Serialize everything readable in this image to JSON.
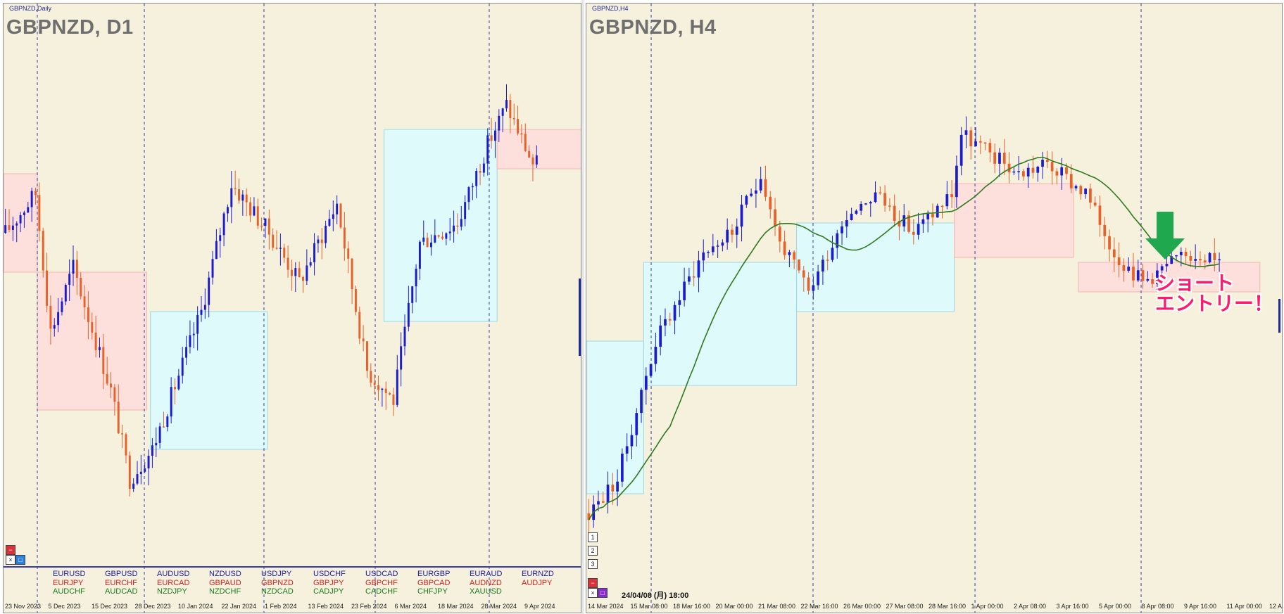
{
  "left": {
    "mini_title": "GBPNZD,Daily",
    "title": "GBPNZD, D1",
    "dates": [
      "23 Nov 2023",
      "5 Dec 2023",
      "15 Dec 2023",
      "28 Dec 2023",
      "10 Jan 2024",
      "22 Jan 2024",
      "1 Feb 2024",
      "13 Feb 2024",
      "23 Feb 2024",
      "6 Mar 2024",
      "18 Mar 2024",
      "28 Mar 2024",
      "9 Apr 2024"
    ],
    "symbols": [
      [
        "EURUSD",
        "EURJPY",
        "AUDCHF"
      ],
      [
        "GBPUSD",
        "EURCHF",
        "AUDCAD"
      ],
      [
        "AUDUSD",
        "EURCAD",
        "NZDJPY"
      ],
      [
        "NZDUSD",
        "GBPAUD",
        "NZDCHF"
      ],
      [
        "USDJPY",
        "GBPNZD",
        "NZDCAD"
      ],
      [
        "USDCHF",
        "GBPJPY",
        "CADJPY"
      ],
      [
        "USDCAD",
        "GBPCHF",
        "CADCHF"
      ],
      [
        "EURGBP",
        "GBPCAD",
        "CHFJPY"
      ],
      [
        "EURAUD",
        "AUDNZD",
        "XAUUSD"
      ],
      [
        "EURNZD",
        "AUDJPY",
        ""
      ]
    ],
    "symbol_colors": [
      "#1a1aa6",
      "#d02020",
      "#1e7a1e"
    ]
  },
  "right": {
    "mini_title": "GBPNZD,H4",
    "title": "GBPNZD, H4",
    "dates": [
      "14 Mar 2024",
      "15 Mar 08:00",
      "18 Mar 16:00",
      "20 Mar 00:00",
      "21 Mar 08:00",
      "22 Mar 16:00",
      "26 Mar 00:00",
      "27 Mar 08:00",
      "28 Mar 16:00",
      "1 Apr 00:00",
      "2 Apr 08:00",
      "3 Apr 16:00",
      "5 Apr 00:00",
      "8 Apr 08:00",
      "9 Apr 16:00",
      "11 Apr 00:00",
      "12 A"
    ],
    "timestamp": "24/04/08 (月) 18:00",
    "side_buttons": [
      "1",
      "2",
      "3"
    ],
    "annotation": [
      "ショート",
      "エントリー！"
    ]
  },
  "colors": {
    "background": "#f5f1dc",
    "bull": "#1c1ccf",
    "bear": "#e8602a",
    "zone_blue": "#dffafa",
    "zone_pink": "#fde0dc",
    "ma": "#2e7a1e",
    "arrow": "#1fa84e",
    "annotation": "#ff1a6b"
  },
  "chart_data": [
    {
      "type": "candlestick",
      "title": "GBPNZD, D1",
      "x": [
        "23 Nov 2023",
        "5 Dec 2023",
        "15 Dec 2023",
        "28 Dec 2023",
        "10 Jan 2024",
        "22 Jan 2024",
        "1 Feb 2024",
        "13 Feb 2024",
        "23 Feb 2024",
        "6 Mar 2024",
        "18 Mar 2024",
        "28 Mar 2024",
        "9 Apr 2024"
      ],
      "price_range": [
        0,
        100
      ],
      "zones": [
        {
          "kind": "sell",
          "from": 0,
          "to": 8,
          "top": 74,
          "bottom": 54
        },
        {
          "kind": "sell",
          "from": 9,
          "to": 37,
          "top": 54,
          "bottom": 26
        },
        {
          "kind": "buy",
          "from": 39,
          "to": 69,
          "top": 46,
          "bottom": 18
        },
        {
          "kind": "buy",
          "from": 101,
          "to": 130,
          "top": 83,
          "bottom": 44
        },
        {
          "kind": "sell",
          "from": 131,
          "to": 156,
          "top": 83,
          "bottom": 75
        }
      ]
    },
    {
      "type": "candlestick",
      "title": "GBPNZD, H4",
      "x": [
        "14 Mar 2024",
        "15 Mar 08:00",
        "18 Mar 16:00",
        "20 Mar 00:00",
        "21 Mar 08:00",
        "22 Mar 16:00",
        "26 Mar 00:00",
        "27 Mar 08:00",
        "28 Mar 16:00",
        "1 Apr 00:00",
        "2 Apr 08:00",
        "3 Apr 16:00",
        "5 Apr 00:00",
        "8 Apr 08:00",
        "9 Apr 16:00",
        "11 Apr 00:00"
      ],
      "moving_average": true,
      "signal": "short entry",
      "zones": [
        {
          "kind": "buy",
          "from": 0,
          "to": 11,
          "top": 40,
          "bottom": 9
        },
        {
          "kind": "buy",
          "from": 12,
          "to": 43,
          "top": 56,
          "bottom": 31
        },
        {
          "kind": "buy",
          "from": 44,
          "to": 76,
          "top": 64,
          "bottom": 46
        },
        {
          "kind": "sell",
          "from": 77,
          "to": 101,
          "top": 72,
          "bottom": 57
        },
        {
          "kind": "sell",
          "from": 103,
          "to": 140,
          "top": 56,
          "bottom": 50
        }
      ]
    }
  ]
}
